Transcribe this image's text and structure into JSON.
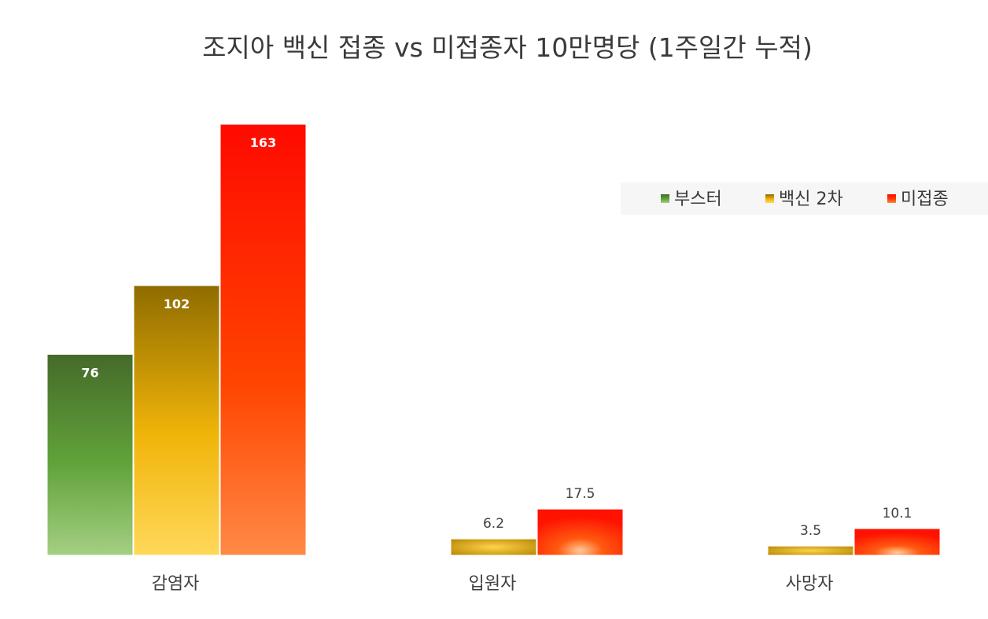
{
  "chart_data": {
    "type": "bar",
    "title": "조지아 백신 접종 vs 미접종자 10만명당 (1주일간 누적)",
    "categories": [
      "감염자",
      "입원자",
      "사망자"
    ],
    "series": [
      {
        "name": "부스터",
        "values": [
          76,
          null,
          null
        ],
        "color": "#5e9e3a"
      },
      {
        "name": "백신 2차",
        "values": [
          102,
          6.2,
          3.5
        ],
        "color": "#f2b705"
      },
      {
        "name": "미접종",
        "values": [
          163,
          17.5,
          10.1
        ],
        "color": "#ff1a00"
      }
    ],
    "ylim": [
      0,
      163
    ],
    "grid": false,
    "legend_position": "right"
  }
}
